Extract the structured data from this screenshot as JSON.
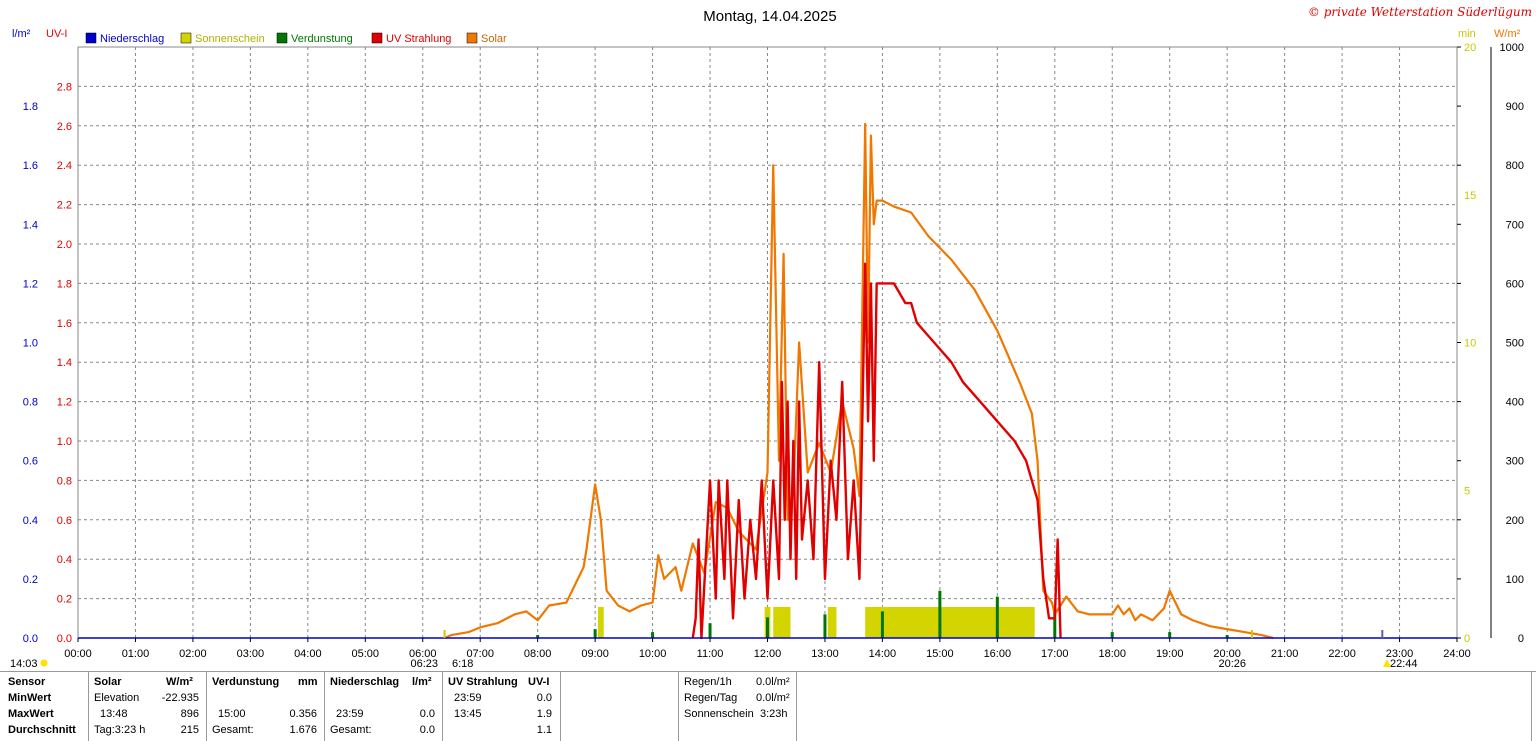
{
  "title": "Montag, 14.04.2025",
  "copyright": "© private Wetterstation Süderlügum",
  "left_units": {
    "rain": "l/m²",
    "uv": "UV-I"
  },
  "right_units": {
    "min": "min",
    "solar": "W/m²"
  },
  "colors": {
    "rain": "#0000cc",
    "sun": "#d4d400",
    "evap": "#007700",
    "uv": "#e00000",
    "solar": "#f07800",
    "sun_axis": "#c8c800"
  },
  "chart_data": {
    "type": "line",
    "title": "Montag, 14.04.2025",
    "x_ticks": [
      "00:00",
      "01:00",
      "02:00",
      "03:00",
      "04:00",
      "05:00",
      "06:00",
      "07:00",
      "08:00",
      "09:00",
      "10:00",
      "11:00",
      "12:00",
      "13:00",
      "14:00",
      "15:00",
      "16:00",
      "17:00",
      "18:00",
      "19:00",
      "20:00",
      "21:00",
      "22:00",
      "23:00",
      "24:00"
    ],
    "xlim": [
      0,
      24
    ],
    "axes": {
      "rain": {
        "label": "l/m²",
        "ylim": [
          0,
          2.0
        ],
        "ticks": [
          "0.0",
          "0.2",
          "0.4",
          "0.6",
          "0.8",
          "1.0",
          "1.2",
          "1.4",
          "1.6",
          "1.8"
        ]
      },
      "uv": {
        "label": "UV-I",
        "ylim": [
          0,
          3.0
        ],
        "ticks": [
          "0.0",
          "0.2",
          "0.4",
          "0.6",
          "0.8",
          "1.0",
          "1.2",
          "1.4",
          "1.6",
          "1.8",
          "2.0",
          "2.2",
          "2.4",
          "2.6",
          "2.8"
        ]
      },
      "sun": {
        "label": "min",
        "ylim": [
          0,
          20
        ],
        "ticks": [
          "0",
          "5",
          "10",
          "15",
          "20"
        ]
      },
      "solar": {
        "label": "W/m²",
        "ylim": [
          0,
          1000
        ],
        "ticks": [
          "0",
          "100",
          "200",
          "300",
          "400",
          "500",
          "600",
          "700",
          "800",
          "900",
          "1000"
        ]
      }
    },
    "legend": [
      {
        "name": "Niederschlag",
        "color": "#0000cc"
      },
      {
        "name": "Sonnenschein",
        "color": "#d4d400"
      },
      {
        "name": "Verdunstung",
        "color": "#007700"
      },
      {
        "name": "UV Strahlung",
        "color": "#e00000"
      },
      {
        "name": "Solar",
        "color": "#f07800"
      }
    ],
    "series": [
      {
        "name": "Solar",
        "axis": "solar",
        "x": [
          6.38,
          6.5,
          6.8,
          7.0,
          7.3,
          7.6,
          7.8,
          8.0,
          8.2,
          8.5,
          8.8,
          8.85,
          9.0,
          9.1,
          9.2,
          9.4,
          9.6,
          9.8,
          10.0,
          10.1,
          10.2,
          10.4,
          10.5,
          10.7,
          10.9,
          11.1,
          11.3,
          11.5,
          11.8,
          12.0,
          12.1,
          12.2,
          12.28,
          12.35,
          12.45,
          12.55,
          12.7,
          12.9,
          13.1,
          13.3,
          13.5,
          13.6,
          13.7,
          13.75,
          13.8,
          13.85,
          13.9,
          14.0,
          14.2,
          14.5,
          14.8,
          15.2,
          15.6,
          16.0,
          16.4,
          16.6,
          16.7,
          16.8,
          16.95,
          17.0,
          17.2,
          17.4,
          17.6,
          17.8,
          18.0,
          18.1,
          18.2,
          18.3,
          18.4,
          18.5,
          18.7,
          18.9,
          19.0,
          19.2,
          19.4,
          19.7,
          20.0,
          20.3,
          20.6,
          20.8
        ],
        "y": [
          0,
          5,
          10,
          18,
          25,
          40,
          45,
          30,
          55,
          60,
          120,
          150,
          260,
          200,
          80,
          55,
          45,
          55,
          60,
          140,
          100,
          120,
          80,
          160,
          110,
          230,
          220,
          180,
          150,
          280,
          800,
          300,
          650,
          200,
          250,
          500,
          280,
          330,
          280,
          400,
          320,
          240,
          870,
          500,
          850,
          700,
          740,
          740,
          730,
          720,
          680,
          640,
          590,
          520,
          430,
          380,
          300,
          80,
          60,
          40,
          70,
          45,
          40,
          40,
          40,
          55,
          40,
          50,
          30,
          40,
          30,
          50,
          80,
          40,
          30,
          20,
          15,
          10,
          5,
          0
        ]
      },
      {
        "name": "UV Strahlung",
        "axis": "uv",
        "x": [
          10.7,
          10.75,
          10.8,
          10.85,
          11.0,
          11.1,
          11.15,
          11.25,
          11.3,
          11.4,
          11.5,
          11.6,
          11.7,
          11.8,
          11.9,
          12.0,
          12.1,
          12.2,
          12.25,
          12.3,
          12.35,
          12.4,
          12.45,
          12.5,
          12.55,
          12.6,
          12.7,
          12.8,
          12.9,
          13.0,
          13.1,
          13.2,
          13.3,
          13.4,
          13.5,
          13.6,
          13.7,
          13.75,
          13.8,
          13.85,
          13.9,
          14.0,
          14.2,
          14.4,
          14.5,
          14.6,
          14.9,
          15.2,
          15.4,
          15.7,
          16.0,
          16.3,
          16.5,
          16.6,
          16.7,
          16.75,
          16.8,
          16.85,
          16.9,
          17.0,
          17.05,
          17.1
        ],
        "y": [
          0,
          0.1,
          0.5,
          0,
          0.8,
          0.2,
          0.8,
          0.3,
          0.8,
          0.1,
          0.7,
          0.2,
          0.6,
          0.3,
          0.8,
          0.2,
          0.8,
          0.3,
          1.3,
          0.6,
          1.2,
          0.4,
          1.0,
          0.3,
          1.2,
          0.5,
          0.8,
          0.4,
          1.4,
          0.3,
          0.9,
          0.6,
          1.3,
          0.4,
          0.8,
          0.3,
          1.9,
          1.1,
          1.8,
          0.9,
          1.8,
          1.8,
          1.8,
          1.7,
          1.7,
          1.6,
          1.5,
          1.4,
          1.3,
          1.2,
          1.1,
          1.0,
          0.9,
          0.8,
          0.7,
          0.5,
          0.3,
          0.2,
          0.1,
          0.1,
          0.5,
          0
        ]
      },
      {
        "name": "Sonnenschein",
        "axis": "sun",
        "x": [
          9.05,
          9.15,
          11.95,
          12.05,
          12.1,
          12.4,
          13.05,
          13.2,
          13.7,
          16.65
        ],
        "y": [
          1,
          1,
          1,
          1,
          1,
          1,
          1,
          1,
          1,
          1
        ]
      },
      {
        "name": "Verdunstung",
        "axis": "rain",
        "x": [
          8.0,
          9.0,
          10.0,
          11.0,
          12.0,
          13.0,
          14.0,
          15.0,
          16.0,
          17.0,
          18.0,
          19.0,
          20.0
        ],
        "y": [
          0.01,
          0.03,
          0.02,
          0.05,
          0.07,
          0.08,
          0.09,
          0.16,
          0.14,
          0.1,
          0.02,
          0.02,
          0.01
        ]
      },
      {
        "name": "Niederschlag",
        "axis": "rain",
        "x": [
          0,
          24
        ],
        "y": [
          0,
          0
        ]
      }
    ],
    "grid": true,
    "legend_placement": "top-left"
  },
  "time_markers": {
    "left": "14:03",
    "sunrise": "06:23",
    "civil_twilight": "6:18",
    "sunset": "20:26",
    "right": "22:44"
  },
  "stats": {
    "row_labels": [
      "Sensor",
      "MinWert",
      "MaxWert",
      "Durchschnitt"
    ],
    "solar": {
      "header": "Solar",
      "unit": "W/m²",
      "min_label": "Elevation",
      "min_value": "-22.935",
      "max_time": "13:48",
      "max_value": "896",
      "avg_label": "Tag:3:23 h",
      "avg_value": "215"
    },
    "evap": {
      "header": "Verdunstung",
      "unit": "mm",
      "max_time": "15:00",
      "max_value": "0.356",
      "avg_label": "Gesamt:",
      "avg_value": "1.676"
    },
    "rain": {
      "header": "Niederschlag",
      "unit": "l/m²",
      "max_time": "23:59",
      "max_value": "0.0",
      "avg_label": "Gesamt:",
      "avg_value": "0.0"
    },
    "uv": {
      "header": "UV Strahlung",
      "unit": "UV-I",
      "min_time": "23:59",
      "min_value": "0.0",
      "max_time": "13:45",
      "max_value": "1.9",
      "avg_value": "1.1"
    },
    "extra": {
      "regen1h_label": "Regen/1h",
      "regen1h_value": "0.0l/m²",
      "regentag_label": "Regen/Tag",
      "regentag_value": "0.0l/m²",
      "sonne_label": "Sonnenschein",
      "sonne_value": "3:23h"
    }
  }
}
